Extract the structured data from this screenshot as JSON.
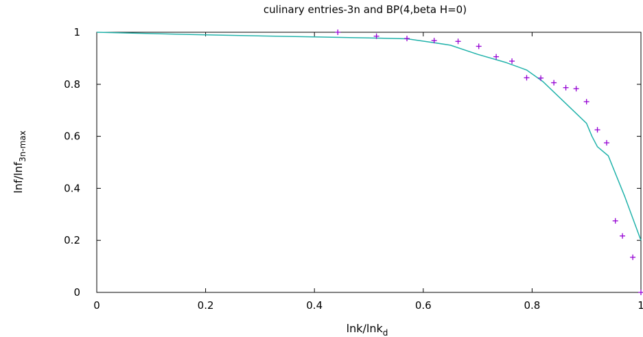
{
  "chart_data": {
    "type": "line",
    "title": "culinary entries-3n and BP(4,beta H=0)",
    "xlabel": {
      "main": "lnk/lnk",
      "sub": "d"
    },
    "ylabel": {
      "main": "lnf/lnf",
      "sub": "3n-max"
    },
    "xlim": [
      0,
      1
    ],
    "ylim": [
      0,
      1
    ],
    "x_ticks": [
      0,
      0.2,
      0.4,
      0.6,
      0.8,
      1
    ],
    "y_ticks": [
      0,
      0.2,
      0.4,
      0.6,
      0.8,
      1
    ],
    "x_tick_labels": [
      "0",
      "0.2",
      "0.4",
      "0.6",
      "0.8",
      "1"
    ],
    "y_tick_labels": [
      "0",
      "0.2",
      "0.4",
      "0.6",
      "0.8",
      "1"
    ],
    "grid": false,
    "series": [
      {
        "style": "line",
        "color": "#20b2aa",
        "x": [
          0,
          0.2,
          0.4,
          0.5,
          0.57,
          0.62,
          0.65,
          0.7,
          0.75,
          0.79,
          0.82,
          0.86,
          0.9,
          0.91,
          0.92,
          0.94,
          0.97,
          1.0
        ],
        "y": [
          1.0,
          0.99,
          0.982,
          0.978,
          0.975,
          0.96,
          0.95,
          0.915,
          0.885,
          0.855,
          0.81,
          0.73,
          0.65,
          0.6,
          0.56,
          0.525,
          0.37,
          0.2
        ]
      },
      {
        "style": "points",
        "marker": "+",
        "color": "#9400d3",
        "x": [
          0.443,
          0.514,
          0.57,
          0.62,
          0.664,
          0.702,
          0.734,
          0.763,
          0.79,
          0.816,
          0.84,
          0.862,
          0.881,
          0.9,
          0.92,
          0.937,
          0.953,
          0.966,
          0.985,
          1.0
        ],
        "y": [
          1.0,
          0.985,
          0.976,
          0.968,
          0.965,
          0.946,
          0.906,
          0.889,
          0.825,
          0.824,
          0.806,
          0.787,
          0.783,
          0.733,
          0.625,
          0.575,
          0.275,
          0.217,
          0.135,
          0.0
        ]
      }
    ]
  }
}
